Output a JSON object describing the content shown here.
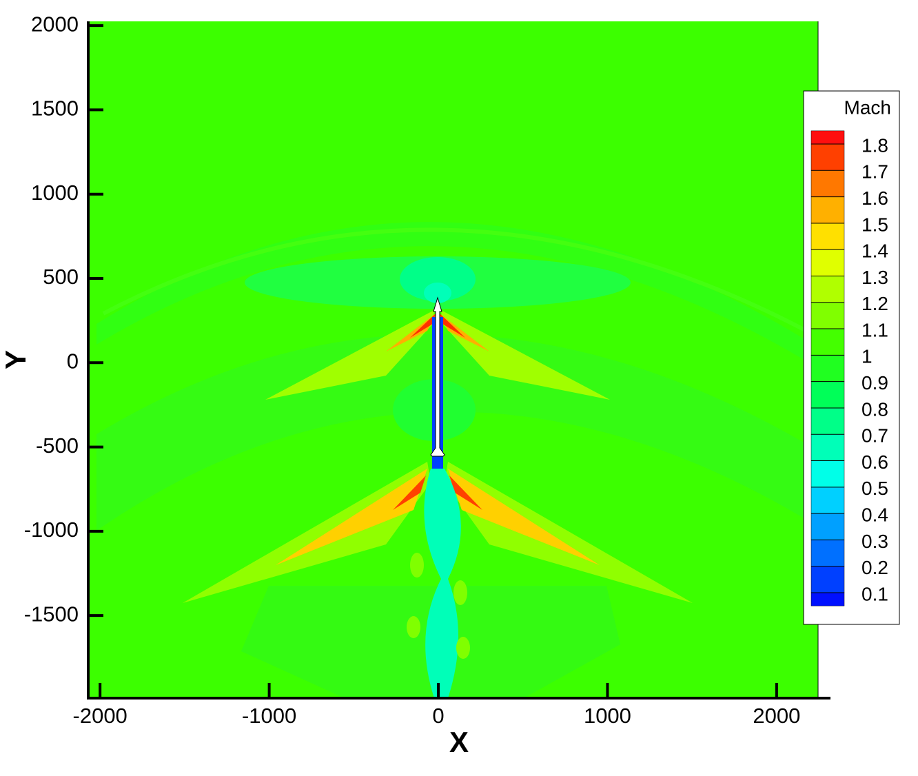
{
  "chart_data": {
    "type": "contour",
    "xlabel": "X",
    "ylabel": "Y",
    "xlim": [
      -2070,
      2245
    ],
    "ylim": [
      -1990,
      2025
    ],
    "xticks": [
      -2000,
      -1000,
      0,
      1000,
      2000
    ],
    "yticks": [
      -1500,
      -1000,
      -500,
      0,
      500,
      1000,
      1500,
      2000
    ],
    "colorbar": {
      "title": "Mach",
      "levels": [
        0.1,
        0.2,
        0.3,
        0.4,
        0.5,
        0.6,
        0.7,
        0.8,
        0.9,
        1,
        1.1,
        1.2,
        1.3,
        1.4,
        1.5,
        1.6,
        1.7,
        1.8
      ],
      "colors": [
        "#0010ff",
        "#0040ff",
        "#0070ff",
        "#00a0ff",
        "#00d0ff",
        "#00ffe8",
        "#00ffb8",
        "#00ff88",
        "#00ff58",
        "#20ff20",
        "#44ff00",
        "#80ff00",
        "#b0ff00",
        "#e0ff00",
        "#ffe000",
        "#ffb000",
        "#ff7800",
        "#ff4000",
        "#ff0f0f"
      ]
    }
  }
}
